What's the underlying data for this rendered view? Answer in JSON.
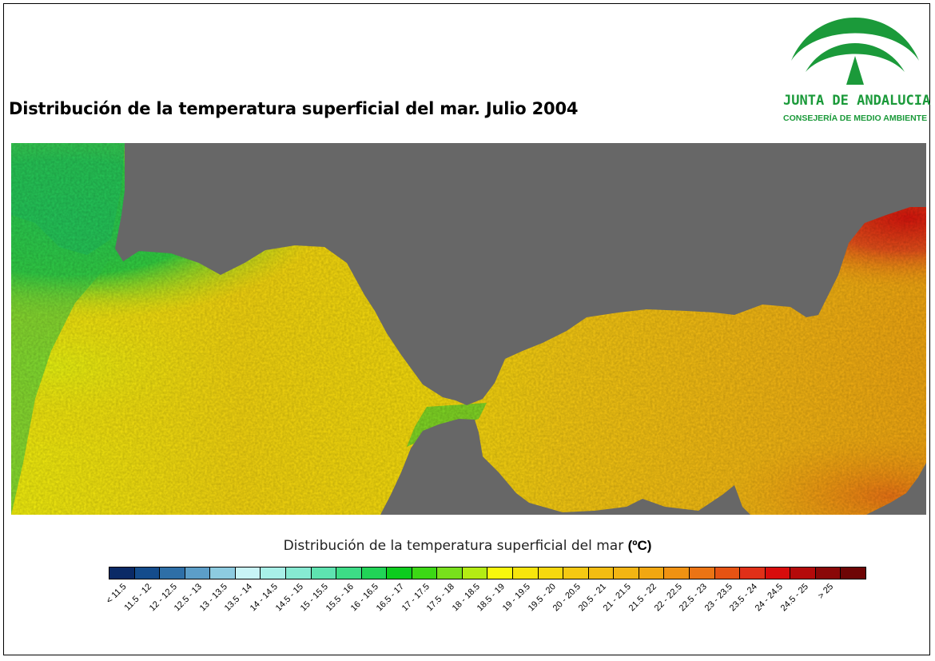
{
  "header": {
    "title": "Distribución de la temperatura superficial del mar. Julio 2004"
  },
  "logo": {
    "name": "JUNTA DE ANDALUCIA",
    "subtitle": "CONSEJERÍA DE MEDIO AMBIENTE",
    "color": "#1b9a3a"
  },
  "map": {
    "land_color": "#676767"
  },
  "legend": {
    "title_text": "Distribución de la temperatura superficial del mar ",
    "unit": "(ºC)",
    "classes": [
      {
        "label": "< 11.5",
        "color": "#0a2a66"
      },
      {
        "label": "11.5 - 12",
        "color": "#144c8c"
      },
      {
        "label": "12 - 12.5",
        "color": "#2e6fa7"
      },
      {
        "label": "12.5 - 13",
        "color": "#5c9ec8"
      },
      {
        "label": "13 - 13.5",
        "color": "#8dcbe0"
      },
      {
        "label": "13.5 - 14",
        "color": "#c8f4f6"
      },
      {
        "label": "14 - 14.5",
        "color": "#a8f0e8"
      },
      {
        "label": "14.5 - 15",
        "color": "#86ead2"
      },
      {
        "label": "15 - 15.5",
        "color": "#5ee3b0"
      },
      {
        "label": "15.5 - 16",
        "color": "#3ddc86"
      },
      {
        "label": "16 - 16.5",
        "color": "#21d457"
      },
      {
        "label": "16.5 - 17",
        "color": "#0ccc1e"
      },
      {
        "label": "17 - 17.5",
        "color": "#3cd815"
      },
      {
        "label": "17.5 - 18",
        "color": "#78e01c"
      },
      {
        "label": "18 - 18.5",
        "color": "#b4ec14"
      },
      {
        "label": "18.5 - 19",
        "color": "#f8f80c"
      },
      {
        "label": "19 - 19.5",
        "color": "#f7e50c"
      },
      {
        "label": "19.5 - 20",
        "color": "#f6d80e"
      },
      {
        "label": "20 - 20.5",
        "color": "#f5c912"
      },
      {
        "label": "20.5 - 21",
        "color": "#f3bd12"
      },
      {
        "label": "21 - 21.5",
        "color": "#f3b513"
      },
      {
        "label": "21.5 - 22",
        "color": "#f1a711"
      },
      {
        "label": "22 - 22.5",
        "color": "#f09212"
      },
      {
        "label": "22.5 - 23",
        "color": "#ec7414"
      },
      {
        "label": "23 - 23.5",
        "color": "#e65313"
      },
      {
        "label": "23.5 - 24",
        "color": "#e03018"
      },
      {
        "label": "24 - 24.5",
        "color": "#d80c0c"
      },
      {
        "label": "24.5 - 25",
        "color": "#b40a0a"
      },
      {
        "label": "> 25",
        "color": "#8a0808"
      },
      {
        "label": "",
        "color": "#6e0505"
      }
    ]
  }
}
